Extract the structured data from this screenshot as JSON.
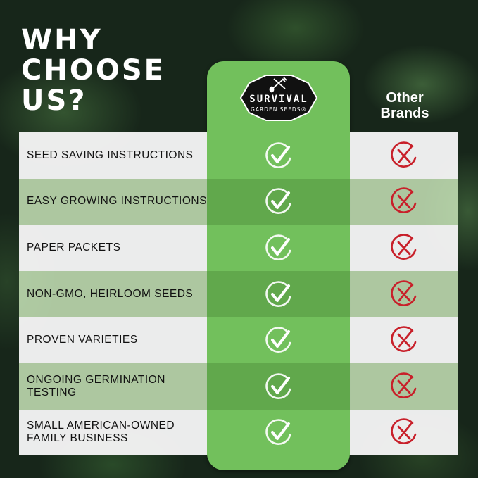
{
  "headline": [
    "WHY",
    "CHOOSE",
    "US?"
  ],
  "brand": {
    "logo_line1": "SURVIVAL",
    "logo_line2": "GARDEN SEEDS®",
    "logo_icon": "shovel-pitchfork-icon"
  },
  "other_brands_label": [
    "Other",
    "Brands"
  ],
  "colors": {
    "brand_green": "#72c05c",
    "brand_green_dark": "#61a84c",
    "cross_red": "#c8202a",
    "row_light": "#f5f5f5",
    "row_green": "#c8e4b9"
  },
  "rows": [
    {
      "feature": "SEED SAVING INSTRUCTIONS",
      "ours": "check-icon",
      "theirs": "cross-icon"
    },
    {
      "feature": "EASY GROWING INSTRUCTIONS",
      "ours": "check-icon",
      "theirs": "cross-icon"
    },
    {
      "feature": "PAPER PACKETS",
      "ours": "check-icon",
      "theirs": "cross-icon"
    },
    {
      "feature": "NON-GMO, HEIRLOOM SEEDS",
      "ours": "check-icon",
      "theirs": "cross-icon"
    },
    {
      "feature": "PROVEN VARIETIES",
      "ours": "check-icon",
      "theirs": "cross-icon"
    },
    {
      "feature": "ONGOING GERMINATION TESTING",
      "ours": "check-icon",
      "theirs": "cross-icon"
    },
    {
      "feature": "SMALL AMERICAN-OWNED\nFAMILY BUSINESS",
      "ours": "check-icon",
      "theirs": "cross-icon"
    }
  ]
}
